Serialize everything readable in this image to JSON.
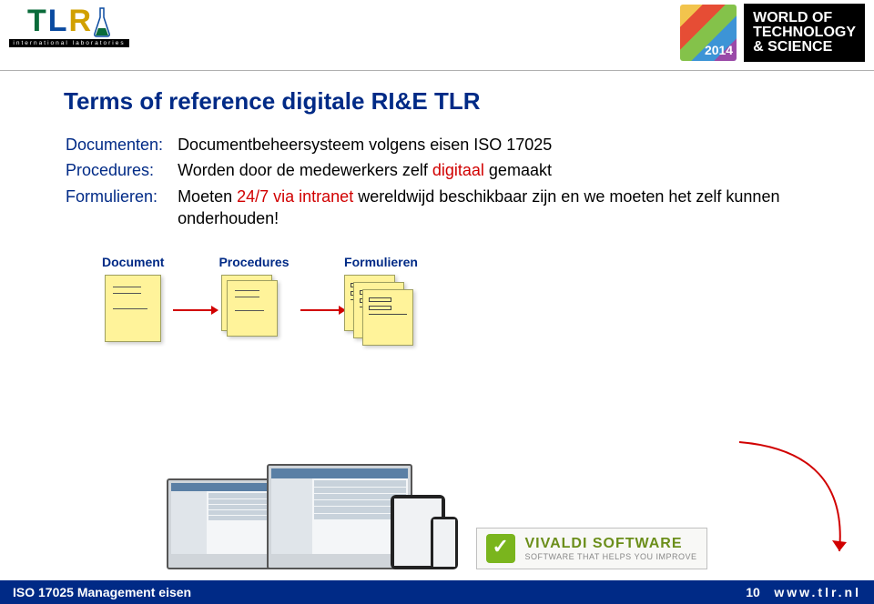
{
  "header": {
    "tlr_letters": "TLR",
    "tlr_colors": [
      "#0a6b3a",
      "#0a4aa0",
      "#d1a000"
    ],
    "intl_lab": "international laboratories",
    "wots_year": "2014",
    "wots_line1": "WORLD OF",
    "wots_line2": "TECHNOLOGY",
    "wots_line3": "& SCIENCE"
  },
  "title": "Terms of reference digitale RI&E TLR",
  "defs": [
    {
      "label": "Documenten:",
      "desc_parts": [
        {
          "t": "Documentbeheersysteem volgens eisen ISO 17025"
        }
      ]
    },
    {
      "label": "Procedures:",
      "desc_parts": [
        {
          "t": "Worden door de medewerkers zelf "
        },
        {
          "t": "digitaal",
          "cls": "hl-red"
        },
        {
          "t": " gemaakt"
        }
      ]
    },
    {
      "label": "Formulieren:",
      "desc_parts": [
        {
          "t": "Moeten "
        },
        {
          "t": "24/7 via intranet",
          "cls": "hl-red"
        },
        {
          "t": " wereldwijd beschikbaar zijn en we moeten het zelf kunnen onderhouden!"
        }
      ]
    }
  ],
  "doc_labels": {
    "document": "Document",
    "procedures": "Procedures",
    "formulieren": "Formulieren"
  },
  "vivaldi": {
    "name": "VIVALDI SOFTWARE",
    "tagline": "SOFTWARE THAT HELPS YOU IMPROVE"
  },
  "footer": {
    "left": "ISO 17025 Management eisen",
    "page": "10",
    "url": "www.tlr.nl"
  },
  "arrow_color": "#d10000"
}
